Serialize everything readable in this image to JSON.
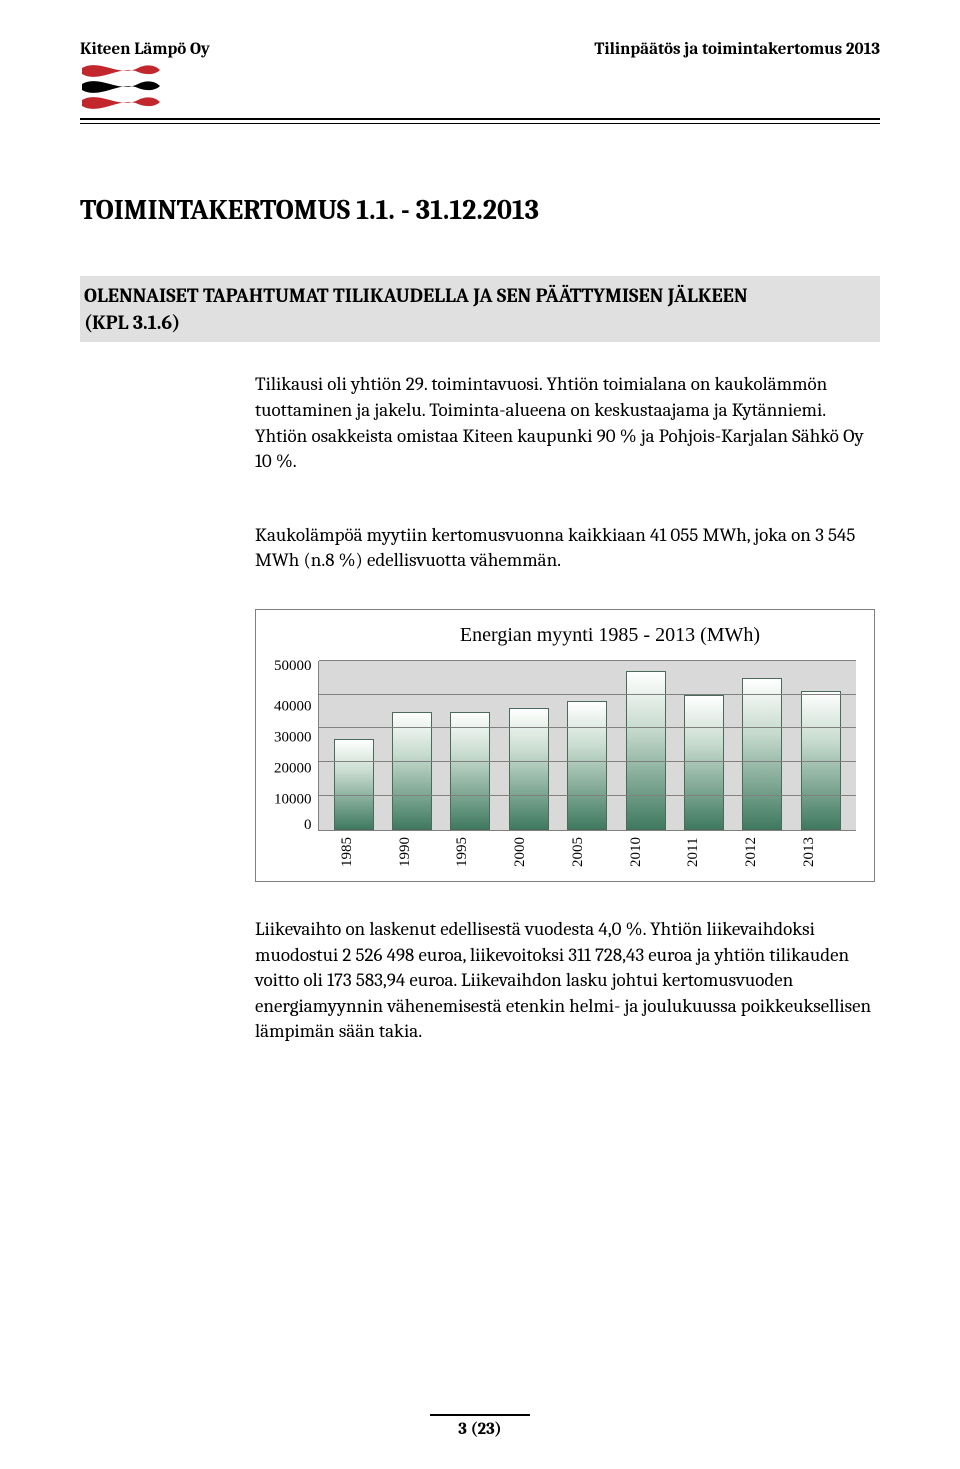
{
  "header": {
    "company": "Kiteen Lämpö Oy",
    "doc_title": "Tilinpäätös ja toimintakertomus 2013"
  },
  "logo": {
    "red": "#c1272d",
    "black": "#000000"
  },
  "title": "TOIMINTAKERTOMUS 1.1. - 31.12.2013",
  "section_heading_line1": "OLENNAISET TAPAHTUMAT TILIKAUDELLA JA SEN PÄÄTTYMISEN JÄLKEEN",
  "section_heading_line2": "(KPL 3.1.6)",
  "paragraphs": {
    "p1": "Tilikausi oli yhtiön 29. toimintavuosi. Yhtiön toimialana on kauko­lämmön tuottaminen ja jakelu. Toiminta-alueena on keskustaajama ja Kytänniemi. Yhtiön osakkeista omistaa Kiteen kaupunki 90 % ja Pohjois-Karjalan Sähkö Oy 10 %.",
    "p2": "Kaukolämpöä myytiin kertomusvuonna kaikkiaan 41 055 MWh, joka on 3 545 MWh (n.8 %) edellisvuotta vähemmän.",
    "p3": "Liikevaihto on laskenut edellisestä vuodesta 4,0 %. Yhtiön liikevaih­doksi muodostui 2 526 498 euroa, liikevoitoksi 311 728,43 euroa ja yhtiön tilikauden voitto oli 173 583,94 euroa. Liikevaihdon lasku johtui kertomusvuoden energiamyynnin vähenemisestä etenkin helmi- ja joulukuussa poikkeuksellisen lämpimän sään takia."
  },
  "chart": {
    "title": "Energian  myynti  1985 - 2013 (MWh)",
    "type": "bar",
    "y_labels": [
      "50000",
      "40000",
      "30000",
      "20000",
      "10000",
      "0"
    ],
    "y_max": 50000,
    "categories": [
      "1985",
      "1990",
      "1995",
      "2000",
      "2005",
      "2010",
      "2011",
      "2012",
      "2013"
    ],
    "values": [
      27000,
      35000,
      35000,
      36000,
      38000,
      47000,
      40000,
      45000,
      41000
    ],
    "plot_bg": "#d9d9d9",
    "grid_color": "#808080",
    "bar_border": "#4a6b5a",
    "bar_grad_top": "#ffffff",
    "bar_grad_mid": "#c9dcd0",
    "bar_grad_bot": "#3f7a5f"
  },
  "footer": {
    "page": "3 (23)"
  }
}
